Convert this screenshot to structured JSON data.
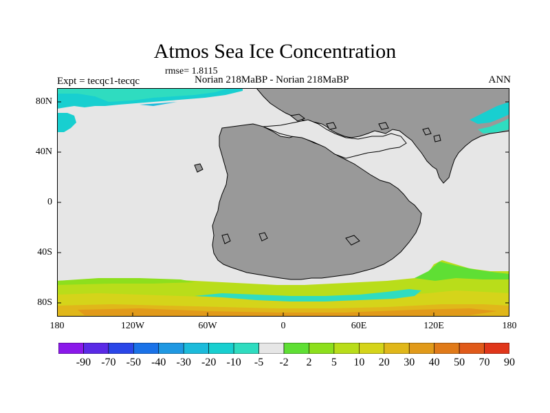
{
  "title": "Atmos Sea Ice Concentration",
  "rmse_label": "rmse= 1.8115",
  "expt_label": "Expt = tecqc1-tecqc",
  "subtitle": "Norian 218MaBP - Norian 218MaBP",
  "season": "ANN",
  "lat_labels": [
    "80N",
    "40N",
    "0",
    "40S",
    "80S"
  ],
  "lon_labels": [
    "180",
    "120W",
    "60W",
    "0",
    "60E",
    "120E",
    "180"
  ],
  "colorbar": {
    "labels": [
      "-90",
      "-70",
      "-50",
      "-40",
      "-30",
      "-20",
      "-10",
      "-5",
      "-2",
      "2",
      "5",
      "10",
      "20",
      "30",
      "40",
      "50",
      "70",
      "90"
    ],
    "colors": [
      "#8a18ea",
      "#5a2ae6",
      "#2a46e8",
      "#1a72e8",
      "#1f98e2",
      "#1cbbdb",
      "#18cfd0",
      "#2fdcc0",
      "#e6e6e6",
      "#5fdf34",
      "#8ddf1d",
      "#b9dd1a",
      "#d5d41a",
      "#e0b71a",
      "#e19a1a",
      "#e07a19",
      "#e05a1a",
      "#e0361a"
    ]
  },
  "colors": {
    "land": "#999999",
    "no_change": "#e6e6e6"
  }
}
